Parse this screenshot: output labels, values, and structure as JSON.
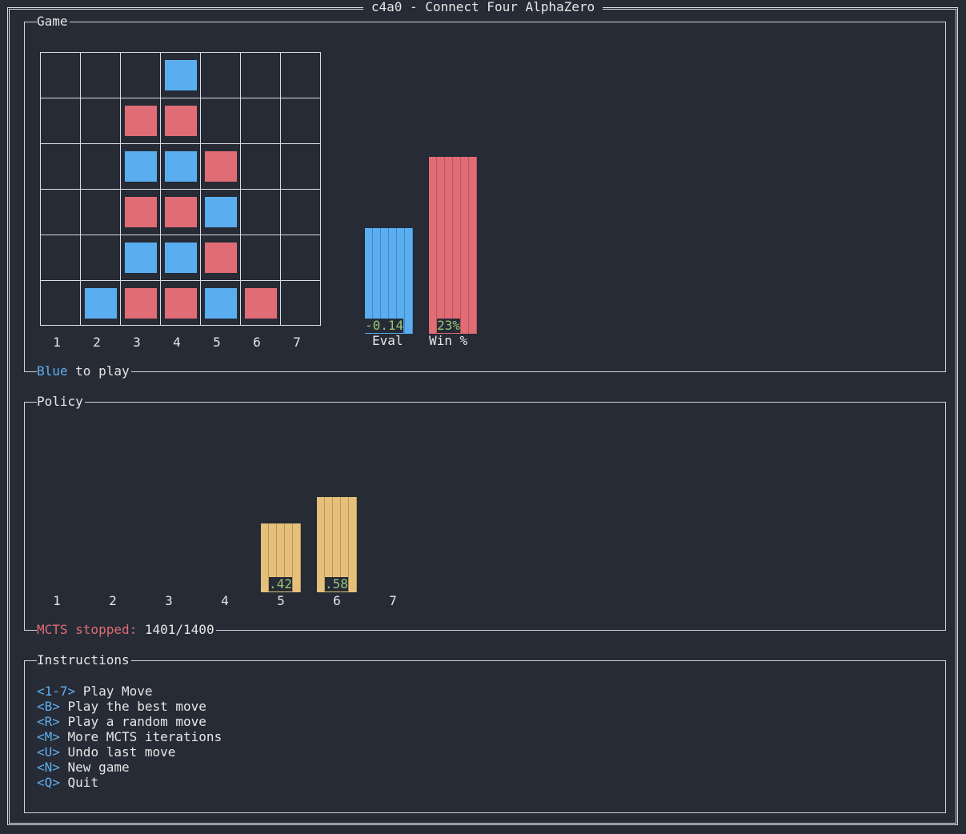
{
  "window": {
    "title": "c4a0 - Connect Four AlphaZero"
  },
  "game_panel": {
    "title": "Game",
    "column_labels": [
      "1",
      "2",
      "3",
      "4",
      "5",
      "6",
      "7"
    ],
    "board": [
      [
        null,
        null,
        null,
        "blue",
        null,
        null,
        null
      ],
      [
        null,
        null,
        "red",
        "red",
        null,
        null,
        null
      ],
      [
        null,
        null,
        "blue",
        "blue",
        "red",
        null,
        null
      ],
      [
        null,
        null,
        "red",
        "red",
        "blue",
        null,
        null
      ],
      [
        null,
        null,
        "blue",
        "blue",
        "red",
        null,
        null
      ],
      [
        null,
        "blue",
        "red",
        "red",
        "blue",
        "red",
        null
      ]
    ],
    "eval": {
      "label": "Eval",
      "value_text": "-0.14",
      "value": -0.14,
      "color": "#5aaef0"
    },
    "win": {
      "label": "Win %",
      "value_text": "23%",
      "value": 0.23,
      "color": "#e06c75"
    },
    "status": {
      "player": "Blue",
      "suffix": "to play"
    }
  },
  "policy_panel": {
    "title": "Policy",
    "column_labels": [
      "1",
      "2",
      "3",
      "4",
      "5",
      "6",
      "7"
    ],
    "bars": [
      {
        "column": "5",
        "value_text": ".42",
        "value": 0.42
      },
      {
        "column": "6",
        "value_text": ".58",
        "value": 0.58
      }
    ],
    "bar_color": "#e5c07b",
    "status": {
      "label": "MCTS stopped:",
      "value": "1401/1400"
    }
  },
  "instructions_panel": {
    "title": "Instructions",
    "items": [
      {
        "key": "<1-7>",
        "text": "Play Move"
      },
      {
        "key": "<B>",
        "text": "Play the best move"
      },
      {
        "key": "<R>",
        "text": "Play a random move"
      },
      {
        "key": "<M>",
        "text": "More MCTS iterations"
      },
      {
        "key": "<U>",
        "text": "Undo last move"
      },
      {
        "key": "<N>",
        "text": "New game"
      },
      {
        "key": "<Q>",
        "text": "Quit"
      }
    ]
  },
  "colors": {
    "blue": "#5aaef0",
    "red": "#e06c75",
    "yellow": "#e5c07b",
    "green": "#98c379",
    "background": "#262b35"
  }
}
